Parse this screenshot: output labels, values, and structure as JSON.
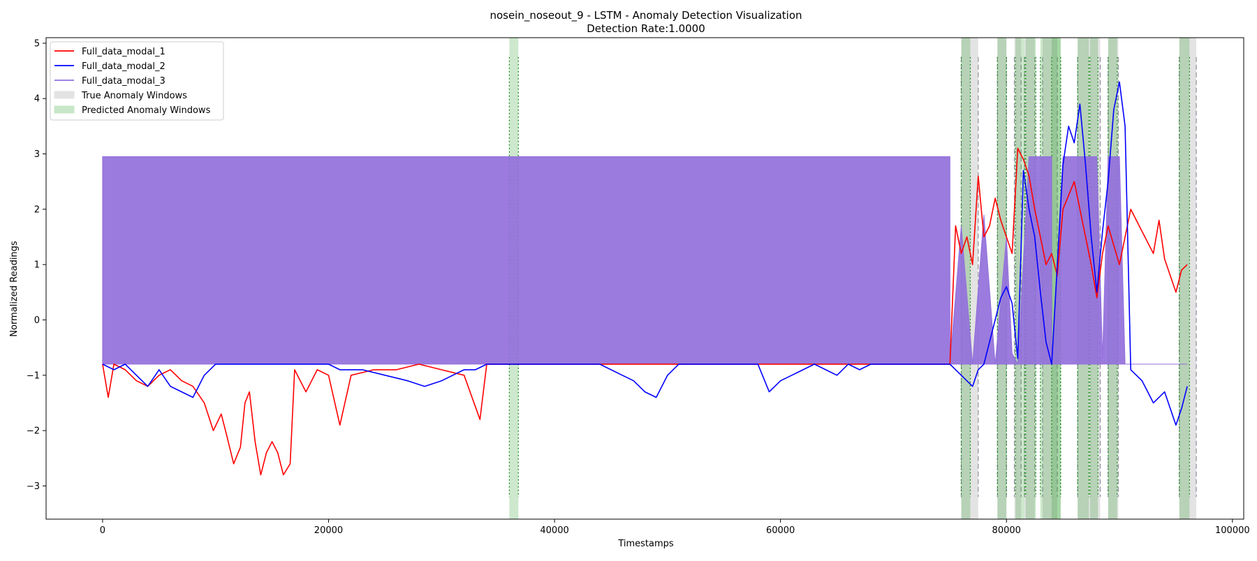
{
  "chart_data": {
    "type": "line",
    "title": "nosein_noseout_9 - LSTM - Anomaly Detection Visualization",
    "subtitle": "Detection Rate:1.0000",
    "xlabel": "Timestamps",
    "ylabel": "Normalized Readings",
    "xlim": [
      -5000,
      101000
    ],
    "ylim": [
      -3.6,
      5.1
    ],
    "x_ticks": [
      0,
      20000,
      40000,
      60000,
      80000,
      100000
    ],
    "y_ticks": [
      -3,
      -2,
      -1,
      0,
      1,
      2,
      3,
      4,
      5
    ],
    "grid": false,
    "legend_position": "top-left",
    "series": [
      {
        "name": "Full_data_modal_1",
        "color": "#ff0000",
        "points": [
          [
            0,
            -0.8
          ],
          [
            500,
            -1.4
          ],
          [
            1000,
            -0.8
          ],
          [
            2000,
            -0.9
          ],
          [
            3000,
            -1.1
          ],
          [
            4000,
            -1.2
          ],
          [
            5000,
            -1.0
          ],
          [
            6000,
            -0.9
          ],
          [
            7000,
            -1.1
          ],
          [
            8000,
            -1.2
          ],
          [
            9000,
            -1.5
          ],
          [
            9800,
            -2.0
          ],
          [
            10500,
            -1.7
          ],
          [
            11000,
            -2.1
          ],
          [
            11600,
            -2.6
          ],
          [
            12200,
            -2.3
          ],
          [
            12600,
            -1.5
          ],
          [
            13000,
            -1.3
          ],
          [
            13500,
            -2.2
          ],
          [
            14000,
            -2.8
          ],
          [
            14500,
            -2.4
          ],
          [
            15000,
            -2.2
          ],
          [
            15500,
            -2.4
          ],
          [
            16000,
            -2.8
          ],
          [
            16600,
            -2.6
          ],
          [
            17000,
            -0.9
          ],
          [
            18000,
            -1.3
          ],
          [
            19000,
            -0.9
          ],
          [
            20000,
            -1.0
          ],
          [
            21000,
            -1.9
          ],
          [
            22000,
            -1.0
          ],
          [
            24000,
            -0.9
          ],
          [
            26000,
            -0.9
          ],
          [
            28000,
            -0.8
          ],
          [
            30000,
            -0.9
          ],
          [
            32000,
            -1.0
          ],
          [
            33400,
            -1.8
          ],
          [
            34000,
            -0.8
          ],
          [
            75000,
            -0.8
          ],
          [
            75500,
            1.7
          ],
          [
            76000,
            1.2
          ],
          [
            76500,
            1.5
          ],
          [
            77000,
            1.0
          ],
          [
            77500,
            2.6
          ],
          [
            78000,
            1.5
          ],
          [
            78500,
            1.7
          ],
          [
            79000,
            2.2
          ],
          [
            79500,
            1.8
          ],
          [
            80000,
            1.5
          ],
          [
            80500,
            1.2
          ],
          [
            81000,
            3.1
          ],
          [
            81500,
            2.9
          ],
          [
            82000,
            2.6
          ],
          [
            82500,
            2.0
          ],
          [
            83000,
            1.5
          ],
          [
            83500,
            1.0
          ],
          [
            84000,
            1.2
          ],
          [
            84500,
            0.8
          ],
          [
            85000,
            2.0
          ],
          [
            86000,
            2.5
          ],
          [
            87000,
            1.5
          ],
          [
            87500,
            1.0
          ],
          [
            88000,
            0.4
          ],
          [
            88500,
            1.2
          ],
          [
            89000,
            1.7
          ],
          [
            90000,
            1.0
          ],
          [
            91000,
            2.0
          ],
          [
            92000,
            1.6
          ],
          [
            93000,
            1.2
          ],
          [
            93500,
            1.8
          ],
          [
            94000,
            1.1
          ],
          [
            95000,
            0.5
          ],
          [
            95500,
            0.9
          ],
          [
            96000,
            1.0
          ]
        ]
      },
      {
        "name": "Full_data_modal_2",
        "color": "#0000ff",
        "points": [
          [
            0,
            -0.8
          ],
          [
            1000,
            -0.9
          ],
          [
            2000,
            -0.8
          ],
          [
            3000,
            -1.0
          ],
          [
            4000,
            -1.2
          ],
          [
            5000,
            -0.9
          ],
          [
            6000,
            -1.2
          ],
          [
            7000,
            -1.3
          ],
          [
            8000,
            -1.4
          ],
          [
            9000,
            -1.0
          ],
          [
            10000,
            -0.8
          ],
          [
            20000,
            -0.8
          ],
          [
            21000,
            -0.9
          ],
          [
            23000,
            -0.9
          ],
          [
            25000,
            -1.0
          ],
          [
            27000,
            -1.1
          ],
          [
            28500,
            -1.2
          ],
          [
            30000,
            -1.1
          ],
          [
            32000,
            -0.9
          ],
          [
            33000,
            -0.9
          ],
          [
            34000,
            -0.8
          ],
          [
            44000,
            -0.8
          ],
          [
            47000,
            -1.1
          ],
          [
            48000,
            -1.3
          ],
          [
            49000,
            -1.4
          ],
          [
            50000,
            -1.0
          ],
          [
            51000,
            -0.8
          ],
          [
            58000,
            -0.8
          ],
          [
            59000,
            -1.3
          ],
          [
            60000,
            -1.1
          ],
          [
            61000,
            -1.0
          ],
          [
            62000,
            -0.9
          ],
          [
            63000,
            -0.8
          ],
          [
            64000,
            -0.9
          ],
          [
            65000,
            -1.0
          ],
          [
            66000,
            -0.8
          ],
          [
            67000,
            -0.9
          ],
          [
            68000,
            -0.8
          ],
          [
            75000,
            -0.8
          ],
          [
            76000,
            -1.0
          ],
          [
            77000,
            -1.2
          ],
          [
            77500,
            -0.9
          ],
          [
            78000,
            -0.8
          ],
          [
            79500,
            0.4
          ],
          [
            80000,
            0.6
          ],
          [
            80500,
            0.3
          ],
          [
            81000,
            -0.7
          ],
          [
            81500,
            2.7
          ],
          [
            82000,
            2.0
          ],
          [
            82500,
            1.5
          ],
          [
            83000,
            0.5
          ],
          [
            83500,
            -0.4
          ],
          [
            84000,
            -0.8
          ],
          [
            85000,
            2.8
          ],
          [
            85500,
            3.5
          ],
          [
            86000,
            3.2
          ],
          [
            86500,
            3.9
          ],
          [
            87000,
            2.8
          ],
          [
            87500,
            1.5
          ],
          [
            88000,
            0.5
          ],
          [
            88500,
            1.6
          ],
          [
            89000,
            2.5
          ],
          [
            89500,
            3.8
          ],
          [
            90000,
            4.3
          ],
          [
            90500,
            3.5
          ],
          [
            91000,
            -0.9
          ],
          [
            92000,
            -1.1
          ],
          [
            93000,
            -1.5
          ],
          [
            94000,
            -1.3
          ],
          [
            95000,
            -1.9
          ],
          [
            95500,
            -1.6
          ],
          [
            96000,
            -1.2
          ]
        ]
      },
      {
        "name": "Full_data_modal_3",
        "color": "#9370db",
        "lower": -0.79,
        "upper": 2.95,
        "points": [
          [
            0,
            -0.8
          ],
          [
            0,
            2.95
          ],
          [
            75000,
            2.95
          ],
          [
            75000,
            -0.8
          ],
          [
            76000,
            1.7
          ],
          [
            77000,
            -0.8
          ],
          [
            78000,
            1.9
          ],
          [
            79000,
            -0.8
          ],
          [
            80000,
            1.5
          ],
          [
            80500,
            -0.6
          ],
          [
            81000,
            -0.8
          ],
          [
            82000,
            2.95
          ],
          [
            84000,
            2.95
          ],
          [
            84000,
            -0.8
          ],
          [
            85000,
            2.95
          ],
          [
            88000,
            2.95
          ],
          [
            88500,
            -0.7
          ],
          [
            89000,
            2.95
          ],
          [
            90000,
            2.95
          ],
          [
            90500,
            -0.8
          ],
          [
            96000,
            -0.8
          ]
        ]
      }
    ],
    "true_anomaly_windows": [
      [
        76000,
        77500
      ],
      [
        79200,
        80000
      ],
      [
        80700,
        81300
      ],
      [
        81600,
        82500
      ],
      [
        83200,
        84500
      ],
      [
        86300,
        88300
      ],
      [
        89000,
        89900
      ],
      [
        95300,
        96800
      ]
    ],
    "predicted_anomaly_windows": [
      [
        36000,
        36800
      ],
      [
        76000,
        76800
      ],
      [
        79200,
        80000
      ],
      [
        80800,
        81600
      ],
      [
        81700,
        82600
      ],
      [
        83000,
        84800
      ],
      [
        84000,
        84800
      ],
      [
        86300,
        87300
      ],
      [
        87400,
        88100
      ],
      [
        89000,
        89800
      ],
      [
        95300,
        96200
      ]
    ],
    "legend_entries": [
      {
        "label": "Full_data_modal_1",
        "kind": "line",
        "color": "#ff0000"
      },
      {
        "label": "Full_data_modal_2",
        "kind": "line",
        "color": "#0000ff"
      },
      {
        "label": "Full_data_modal_3",
        "kind": "line",
        "color": "#9370db"
      },
      {
        "label": "True Anomaly Windows",
        "kind": "patch",
        "color": "#e3e3e3"
      },
      {
        "label": "Predicted Anomaly Windows",
        "kind": "patch",
        "color": "#c8e6c8"
      }
    ]
  }
}
